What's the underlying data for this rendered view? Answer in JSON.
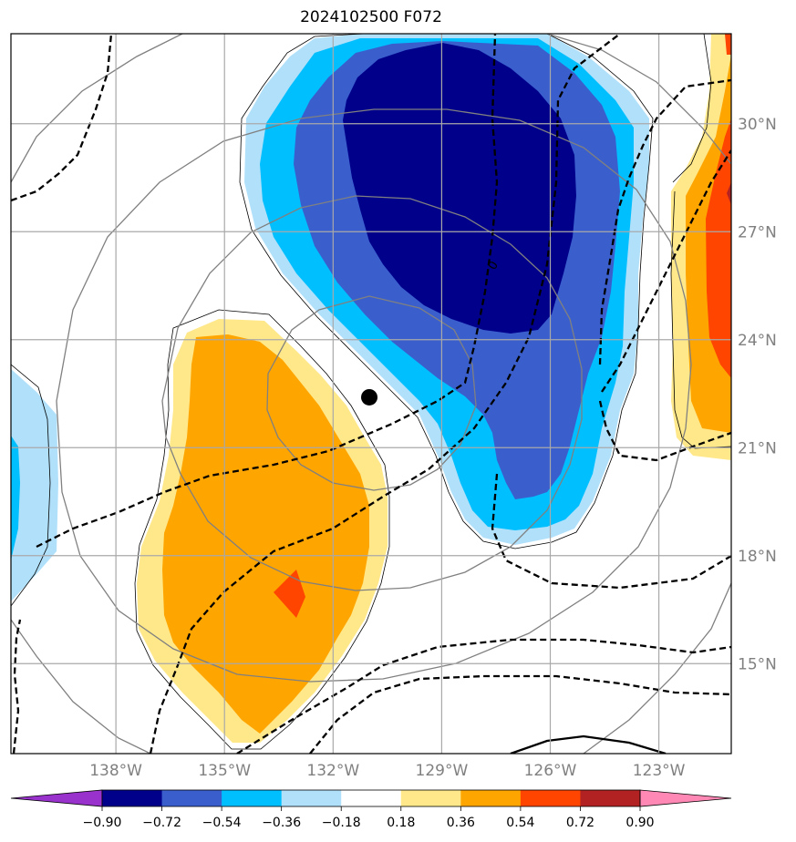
{
  "chart_data": {
    "type": "map-contour",
    "title": "2024102500 F072",
    "lon_ticks": [
      "138°W",
      "135°W",
      "132°W",
      "129°W",
      "126°W",
      "123°W"
    ],
    "lat_ticks": [
      "30°N",
      "27°N",
      "24°N",
      "21°N",
      "18°N",
      "15°N"
    ],
    "lon_range": [
      -140.9,
      -121.0
    ],
    "lat_range": [
      12.5,
      32.5
    ],
    "grid": true,
    "contour_label": "0",
    "marker": {
      "lon": -131.0,
      "lat": 22.4
    },
    "colorbar": {
      "orientation": "horizontal",
      "extend": "both",
      "levels": [
        "−0.90",
        "−0.72",
        "−0.54",
        "−0.36",
        "−0.18",
        "0.18",
        "0.36",
        "0.54",
        "0.72",
        "0.90"
      ],
      "colors": [
        "#9932cc",
        "#00008b",
        "#3a5fcd",
        "#00bfff",
        "#b0e0fa",
        "#ffffff",
        "#ffe88a",
        "#ffa500",
        "#ff4500",
        "#b22222",
        "#ff88b4"
      ]
    }
  }
}
